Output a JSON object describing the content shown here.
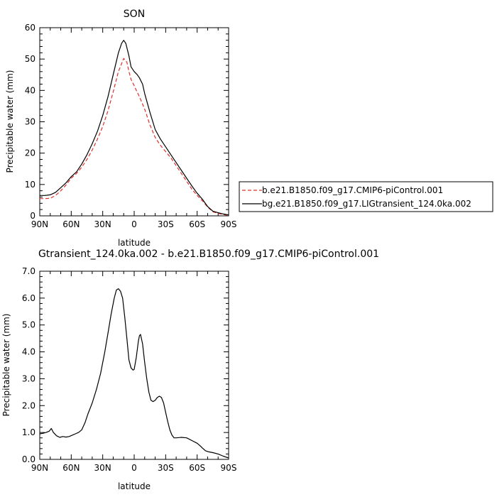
{
  "chart_data": [
    {
      "type": "line",
      "title": "SON",
      "xlabel": "latitude",
      "ylabel": "Precipitable water (mm)",
      "x_ticks": [
        "90N",
        "60N",
        "30N",
        "0",
        "30S",
        "60S",
        "90S"
      ],
      "xlim": [
        90,
        -90
      ],
      "ylim": [
        0,
        60
      ],
      "y_ticks": [
        "0",
        "10",
        "20",
        "30",
        "40",
        "50",
        "60"
      ],
      "grid": false,
      "legend": "right",
      "series": [
        {
          "name": "b.e21.B1850.f09_g17.CMIP6-piControl.001",
          "color": "#e0302a",
          "dash": "dashed",
          "x": [
            90,
            85,
            80,
            75,
            70,
            65,
            60,
            55,
            50,
            45,
            40,
            35,
            30,
            25,
            20,
            15,
            10,
            7,
            5,
            3,
            0,
            -2,
            -5,
            -10,
            -15,
            -20,
            -25,
            -30,
            -35,
            -40,
            -45,
            -50,
            -55,
            -60,
            -65,
            -70,
            -75,
            -80,
            -85,
            -90
          ],
          "y": [
            5.5,
            5.5,
            5.6,
            6.5,
            8.0,
            9.8,
            12.0,
            13.5,
            15.5,
            18.0,
            21.0,
            24.5,
            28.5,
            33.5,
            39.5,
            46.0,
            50.2,
            49.0,
            46.0,
            43.5,
            41.5,
            40.0,
            38.0,
            34.0,
            29.0,
            25.0,
            22.5,
            20.5,
            18.5,
            16.0,
            13.5,
            11.0,
            8.5,
            6.5,
            4.8,
            2.8,
            1.3,
            0.8,
            0.4,
            0.2
          ]
        },
        {
          "name": "bg.e21.B1850.f09_g17.LIGtransient_124.0ka.002",
          "color": "#000000",
          "dash": "solid",
          "x": [
            90,
            85,
            80,
            75,
            70,
            65,
            60,
            55,
            50,
            45,
            40,
            35,
            30,
            25,
            20,
            15,
            12,
            10,
            8,
            5,
            3,
            0,
            -3,
            -5,
            -8,
            -10,
            -15,
            -20,
            -25,
            -30,
            -35,
            -40,
            -45,
            -50,
            -55,
            -60,
            -65,
            -70,
            -75,
            -80,
            -85,
            -90
          ],
          "y": [
            6.5,
            6.5,
            6.7,
            7.5,
            9.0,
            10.5,
            12.5,
            14.0,
            16.5,
            19.5,
            23.0,
            27.0,
            32.0,
            38.0,
            45.0,
            52.0,
            55.0,
            56.0,
            55.0,
            51.0,
            47.5,
            46.0,
            45.0,
            44.0,
            42.0,
            39.0,
            33.0,
            27.5,
            24.5,
            22.0,
            19.5,
            17.0,
            14.5,
            12.0,
            9.5,
            7.2,
            5.3,
            3.0,
            1.5,
            1.0,
            0.6,
            0.3
          ]
        }
      ]
    },
    {
      "type": "line",
      "title": "Gtransient_124.0ka.002 - b.e21.B1850.f09_g17.CMIP6-piControl.001",
      "xlabel": "latitude",
      "ylabel": "Precipitable water (mm)",
      "x_ticks": [
        "90N",
        "60N",
        "30N",
        "0",
        "30S",
        "60S",
        "90S"
      ],
      "xlim": [
        90,
        -90
      ],
      "ylim": [
        0,
        7
      ],
      "y_ticks": [
        "0.0",
        "1.0",
        "2.0",
        "3.0",
        "4.0",
        "5.0",
        "6.0",
        "7.0"
      ],
      "grid": false,
      "series": [
        {
          "color": "#000000",
          "dash": "solid",
          "x": [
            90,
            87,
            84,
            81,
            79,
            77,
            74,
            71,
            68,
            65,
            62,
            59,
            56,
            53,
            50,
            47,
            44,
            40,
            36,
            32,
            28,
            25,
            22,
            19,
            17,
            15,
            13,
            11,
            9,
            7,
            5,
            3,
            1,
            0,
            -2,
            -4,
            -5,
            -6,
            -8,
            -10,
            -12,
            -14,
            -16,
            -18,
            -20,
            -22,
            -24,
            -26,
            -28,
            -30,
            -32,
            -34,
            -36,
            -38,
            -40,
            -45,
            -50,
            -55,
            -60,
            -63,
            -65,
            -68,
            -71,
            -75,
            -80,
            -85,
            -88,
            -90
          ],
          "y": [
            0.95,
            0.97,
            1.0,
            1.05,
            1.15,
            1.0,
            0.88,
            0.82,
            0.85,
            0.83,
            0.85,
            0.9,
            0.95,
            1.0,
            1.1,
            1.35,
            1.7,
            2.1,
            2.6,
            3.2,
            4.0,
            4.7,
            5.4,
            6.0,
            6.3,
            6.35,
            6.25,
            6.0,
            5.3,
            4.5,
            3.7,
            3.4,
            3.32,
            3.35,
            3.8,
            4.4,
            4.6,
            4.65,
            4.3,
            3.6,
            3.0,
            2.5,
            2.2,
            2.15,
            2.2,
            2.3,
            2.35,
            2.3,
            2.1,
            1.75,
            1.4,
            1.1,
            0.9,
            0.8,
            0.8,
            0.82,
            0.8,
            0.7,
            0.6,
            0.5,
            0.42,
            0.32,
            0.28,
            0.25,
            0.2,
            0.12,
            0.08,
            0.05
          ]
        }
      ]
    }
  ]
}
